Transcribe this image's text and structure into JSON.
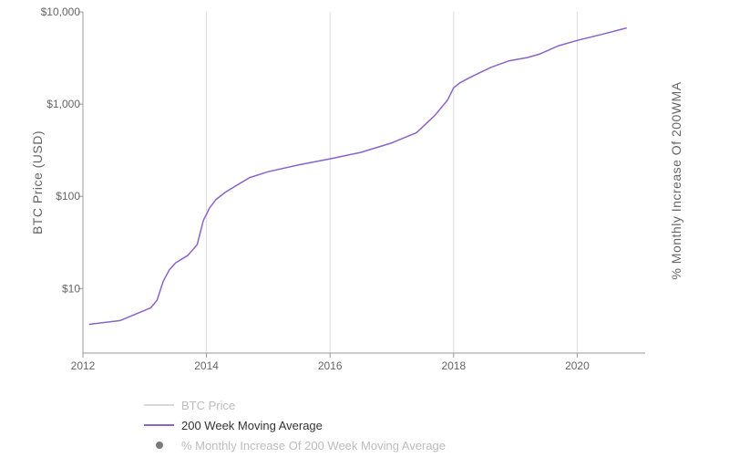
{
  "colors": {
    "ma_line": "#8a63c8",
    "price_line_legend": "#d9d9d9",
    "dot_legend": "#7a7a7a",
    "gridline": "#dddddd",
    "axis": "#999999",
    "text_muted": "#bdbdbd",
    "text": "#333333"
  },
  "chart_data": {
    "type": "line",
    "y_scale": "log",
    "ylim": [
      2.0,
      10000
    ],
    "xlim": [
      2012.0,
      2021.1
    ],
    "ylabel": "BTC Price (USD)",
    "y2label": "% Monthly Increase Of 200WMA",
    "x_ticks": [
      "2012",
      "2014",
      "2016",
      "2018",
      "2020"
    ],
    "y_ticks": [
      "$10",
      "$100",
      "$1,000",
      "$10,000"
    ],
    "series": [
      {
        "name": "200 Week Moving Average",
        "x": [
          2012.1,
          2012.6,
          2013.0,
          2013.1,
          2013.2,
          2013.3,
          2013.4,
          2013.5,
          2013.7,
          2013.85,
          2013.95,
          2014.05,
          2014.15,
          2014.3,
          2014.5,
          2014.7,
          2015.0,
          2015.5,
          2016.0,
          2016.5,
          2017.0,
          2017.4,
          2017.7,
          2017.9,
          2018.0,
          2018.1,
          2018.3,
          2018.6,
          2018.9,
          2019.2,
          2019.4,
          2019.7,
          2020.0,
          2020.4,
          2020.8
        ],
        "values": [
          4.1,
          4.5,
          5.8,
          6.2,
          7.5,
          12.0,
          16.0,
          19.0,
          23.0,
          30.0,
          55.0,
          75.0,
          92.0,
          110.0,
          133.0,
          160.0,
          185.0,
          220.0,
          255.0,
          300.0,
          380.0,
          490.0,
          760.0,
          1100.0,
          1500.0,
          1700.0,
          2000.0,
          2500.0,
          2950.0,
          3200.0,
          3500.0,
          4300.0,
          4900.0,
          5700.0,
          6700.0
        ]
      }
    ]
  },
  "legend": {
    "items": [
      {
        "label": "BTC Price",
        "visible": false
      },
      {
        "label": "200 Week Moving Average",
        "visible": true
      },
      {
        "label": "% Monthly Increase Of 200 Week Moving Average",
        "visible": false
      }
    ]
  }
}
